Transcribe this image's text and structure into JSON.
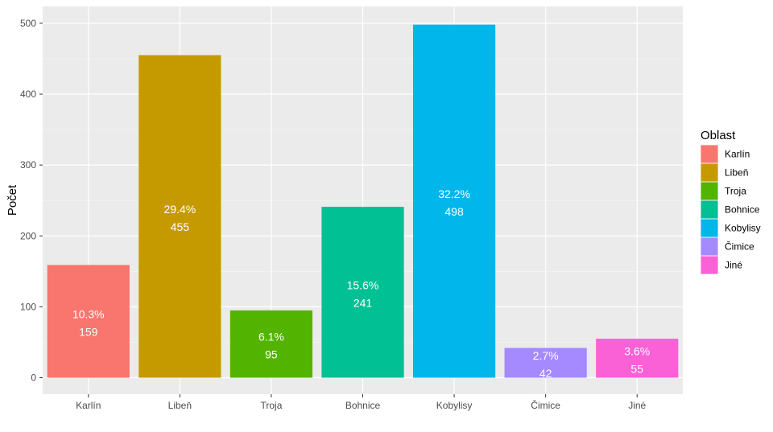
{
  "chart_data": {
    "type": "bar",
    "categories": [
      "Karlín",
      "Libeň",
      "Troja",
      "Bohnice",
      "Kobylisy",
      "Čimice",
      "Jiné"
    ],
    "values": [
      159,
      455,
      95,
      241,
      498,
      42,
      55
    ],
    "percent_labels": [
      "10.3%",
      "29.4%",
      "6.1%",
      "15.6%",
      "32.2%",
      "2.7%",
      "3.6%"
    ],
    "value_labels": [
      "159",
      "455",
      "95",
      "241",
      "498",
      "42",
      "55"
    ],
    "colors": [
      "#F8766D",
      "#C49A00",
      "#53B400",
      "#00C094",
      "#00B6EB",
      "#A58AFF",
      "#FB61D7"
    ],
    "title": "",
    "xlabel": "",
    "ylabel": "Počet",
    "ylim": [
      0,
      500
    ],
    "y_ticks": [
      0,
      100,
      200,
      300,
      400,
      500
    ],
    "grid": true,
    "panel_background": "#EBEBEB",
    "legend": {
      "title": "Oblast",
      "placement": "right",
      "items": [
        "Karlín",
        "Libeň",
        "Troja",
        "Bohnice",
        "Kobylisy",
        "Čimice",
        "Jiné"
      ]
    }
  }
}
